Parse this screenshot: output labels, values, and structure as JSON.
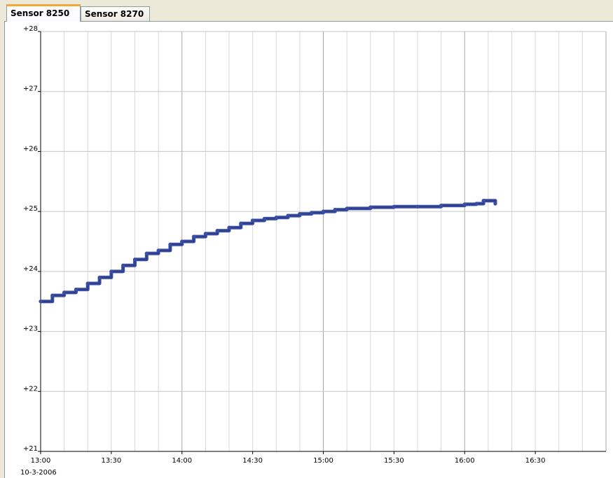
{
  "tabs": [
    {
      "label": "Sensor 8250",
      "active": true
    },
    {
      "label": "Sensor 8270",
      "active": false
    }
  ],
  "colors": {
    "series": "#3a4ea4",
    "grid": "#c6c6c6",
    "axis": "#000000",
    "background": "#ffffff",
    "active_tab_accent": "#f1a836"
  },
  "chart_data": {
    "type": "line",
    "title": "",
    "xlabel": "",
    "ylabel": "",
    "date_label": "10-3-2006",
    "x_unit": "time of day (10-3-2006)",
    "xlim": [
      "13:00",
      "17:00"
    ],
    "ylim": [
      21,
      28
    ],
    "grid": true,
    "y_ticks": [
      "+28",
      "+27",
      "+26",
      "+25",
      "+24",
      "+23",
      "+22",
      "+21"
    ],
    "y_tick_values": [
      28,
      27,
      26,
      25,
      24,
      23,
      22,
      21
    ],
    "x_ticks": [
      "13:00",
      "13:30",
      "14:00",
      "14:30",
      "15:00",
      "15:30",
      "16:00",
      "16:30"
    ],
    "series": [
      {
        "x": [
          "13:00",
          "13:05",
          "13:10",
          "13:15",
          "13:20",
          "13:25",
          "13:30",
          "13:35",
          "13:40",
          "13:45",
          "13:50",
          "13:55",
          "14:00",
          "14:05",
          "14:10",
          "14:15",
          "14:20",
          "14:25",
          "14:30",
          "14:35",
          "14:40",
          "14:45",
          "14:50",
          "14:55",
          "15:00",
          "15:05",
          "15:10",
          "15:20",
          "15:30",
          "15:40",
          "15:50",
          "16:00",
          "16:05",
          "16:08",
          "16:13"
        ],
        "values": [
          23.5,
          23.6,
          23.65,
          23.7,
          23.8,
          23.9,
          24.0,
          24.1,
          24.2,
          24.3,
          24.35,
          24.45,
          24.5,
          24.58,
          24.63,
          24.68,
          24.73,
          24.8,
          24.85,
          24.88,
          24.9,
          24.93,
          24.96,
          24.98,
          25.0,
          25.03,
          25.05,
          25.07,
          25.08,
          25.08,
          25.1,
          25.12,
          25.13,
          25.18,
          25.13
        ]
      }
    ]
  }
}
